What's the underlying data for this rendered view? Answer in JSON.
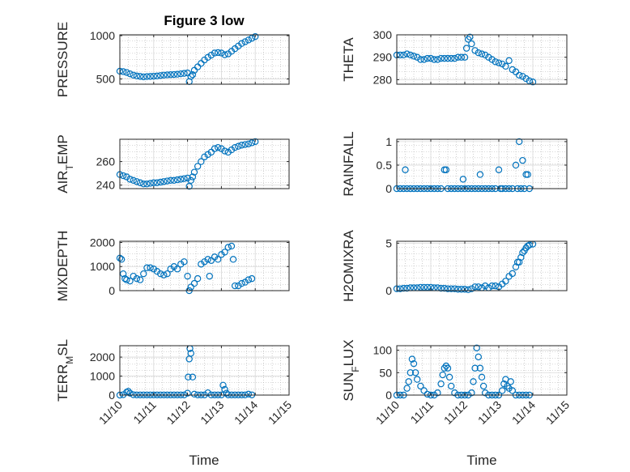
{
  "figure": {
    "title": "Figure 3 low",
    "x_tick_labels": [
      "11/10",
      "11/11",
      "11/12",
      "11/13",
      "11/14",
      "11/15"
    ],
    "xlabel_left": "Time",
    "xlabel_right": "Time"
  },
  "colors": {
    "marker": "#0072BD",
    "axis": "#262626",
    "grid": "#b0b0b0"
  },
  "chart_data": [
    {
      "type": "scatter",
      "ylabel": "PRESSURE",
      "ylim": [
        440,
        1010
      ],
      "yticks": [
        500,
        1000
      ],
      "x": [
        10.0,
        10.1,
        10.2,
        10.3,
        10.4,
        10.5,
        10.6,
        10.7,
        10.8,
        10.9,
        11.0,
        11.1,
        11.2,
        11.3,
        11.4,
        11.5,
        11.6,
        11.7,
        11.8,
        11.9,
        12.0,
        12.05,
        12.1,
        12.15,
        12.2,
        12.3,
        12.4,
        12.5,
        12.6,
        12.7,
        12.8,
        12.9,
        13.0,
        13.1,
        13.2,
        13.3,
        13.4,
        13.5,
        13.6,
        13.7,
        13.8,
        13.9,
        14.0
      ],
      "y": [
        590,
        585,
        575,
        560,
        545,
        535,
        530,
        525,
        528,
        530,
        532,
        535,
        540,
        545,
        548,
        550,
        552,
        555,
        560,
        565,
        570,
        470,
        530,
        550,
        600,
        640,
        680,
        720,
        750,
        775,
        800,
        805,
        800,
        780,
        790,
        820,
        850,
        880,
        910,
        930,
        950,
        970,
        990
      ]
    },
    {
      "type": "scatter",
      "ylabel": "THETA",
      "ylim": [
        278,
        300
      ],
      "yticks": [
        280,
        290,
        300
      ],
      "x": [
        10.0,
        10.1,
        10.2,
        10.3,
        10.4,
        10.5,
        10.6,
        10.7,
        10.8,
        10.9,
        11.0,
        11.1,
        11.2,
        11.3,
        11.4,
        11.5,
        11.6,
        11.7,
        11.8,
        11.9,
        12.0,
        12.05,
        12.1,
        12.15,
        12.2,
        12.3,
        12.4,
        12.5,
        12.6,
        12.7,
        12.8,
        12.9,
        13.0,
        13.1,
        13.2,
        13.3,
        13.4,
        13.5,
        13.6,
        13.7,
        13.8,
        13.9,
        14.0
      ],
      "y": [
        291,
        291,
        291,
        291.5,
        291,
        290.5,
        290,
        289,
        289,
        289.5,
        289.5,
        289,
        289,
        289.5,
        289.5,
        289.5,
        289.5,
        289.5,
        290,
        290,
        290,
        294,
        298,
        299,
        296,
        293,
        292,
        291.5,
        291,
        290,
        289,
        288,
        287.5,
        287,
        286,
        288.5,
        284.5,
        283.5,
        282,
        281.5,
        280.5,
        279.5,
        279
      ]
    },
    {
      "type": "scatter",
      "ylabel": "AIR_TEMP",
      "ylim": [
        237,
        279
      ],
      "yticks": [
        240,
        260
      ],
      "x": [
        10.0,
        10.1,
        10.2,
        10.3,
        10.4,
        10.5,
        10.6,
        10.7,
        10.8,
        10.9,
        11.0,
        11.1,
        11.2,
        11.3,
        11.4,
        11.5,
        11.6,
        11.7,
        11.8,
        11.9,
        12.0,
        12.05,
        12.1,
        12.15,
        12.2,
        12.3,
        12.4,
        12.5,
        12.6,
        12.7,
        12.8,
        12.9,
        13.0,
        13.1,
        13.2,
        13.3,
        13.4,
        13.5,
        13.6,
        13.7,
        13.8,
        13.9,
        14.0
      ],
      "y": [
        249,
        248,
        247,
        245,
        244,
        243,
        242,
        241,
        241,
        241.5,
        242,
        242,
        242.5,
        243,
        243.5,
        244,
        244,
        244.5,
        245,
        245.5,
        246,
        239,
        244,
        247,
        251,
        256,
        260,
        264,
        266,
        268,
        271,
        272,
        271,
        269,
        268,
        270,
        272,
        273,
        274,
        274.5,
        275,
        276,
        277
      ]
    },
    {
      "type": "scatter",
      "ylabel": "RAINFALL",
      "ylim": [
        0,
        1.05
      ],
      "yticks": [
        0,
        0.5,
        1
      ],
      "ytick_labels": [
        "0",
        "0.5",
        "1"
      ],
      "x": [
        10.0,
        10.1,
        10.2,
        10.25,
        10.3,
        10.4,
        10.5,
        10.6,
        10.7,
        10.8,
        10.9,
        11.0,
        11.1,
        11.2,
        11.3,
        11.4,
        11.45,
        11.5,
        11.6,
        11.7,
        11.8,
        11.9,
        11.95,
        12.0,
        12.1,
        12.2,
        12.3,
        12.4,
        12.45,
        12.5,
        12.6,
        12.7,
        12.8,
        12.9,
        13.0,
        13.05,
        13.1,
        13.2,
        13.3,
        13.4,
        13.5,
        13.55,
        13.6,
        13.65,
        13.7,
        13.75,
        13.8,
        13.85,
        13.9
      ],
      "y": [
        0,
        0,
        0,
        0.4,
        0,
        0,
        0,
        0,
        0,
        0,
        0,
        0,
        0,
        0,
        0,
        0.4,
        0.4,
        0,
        0,
        0,
        0,
        0,
        0.2,
        0,
        0,
        0,
        0,
        0,
        0.3,
        0,
        0,
        0,
        0,
        0,
        0.4,
        0,
        0,
        0,
        0,
        0,
        0.5,
        0,
        1.0,
        0,
        0.6,
        0,
        0.3,
        0.3,
        0
      ]
    },
    {
      "type": "scatter",
      "ylabel": "MIXDEPTH",
      "ylim": [
        0,
        2050
      ],
      "yticks": [
        0,
        1000,
        2000
      ],
      "x": [
        10.0,
        10.05,
        10.1,
        10.15,
        10.2,
        10.3,
        10.4,
        10.5,
        10.6,
        10.7,
        10.8,
        10.9,
        11.0,
        11.1,
        11.2,
        11.3,
        11.4,
        11.5,
        11.6,
        11.7,
        11.8,
        11.9,
        12.0,
        12.05,
        12.1,
        12.2,
        12.3,
        12.4,
        12.5,
        12.6,
        12.65,
        12.7,
        12.8,
        12.9,
        13.0,
        13.1,
        13.2,
        13.3,
        13.35,
        13.4,
        13.5,
        13.6,
        13.7,
        13.8,
        13.9
      ],
      "y": [
        1350,
        1300,
        700,
        500,
        450,
        400,
        600,
        500,
        450,
        700,
        950,
        950,
        900,
        800,
        700,
        650,
        700,
        900,
        1000,
        900,
        1100,
        1200,
        600,
        0,
        150,
        300,
        500,
        1100,
        1200,
        1300,
        600,
        1250,
        1400,
        1300,
        1500,
        1600,
        1800,
        1850,
        1300,
        200,
        200,
        300,
        350,
        450,
        500
      ]
    },
    {
      "type": "scatter",
      "ylabel": "H2OMIXRA",
      "ylim": [
        0,
        5.2
      ],
      "yticks": [
        0,
        5
      ],
      "x": [
        10.0,
        10.1,
        10.2,
        10.3,
        10.4,
        10.5,
        10.6,
        10.7,
        10.8,
        10.9,
        11.0,
        11.1,
        11.2,
        11.3,
        11.4,
        11.5,
        11.6,
        11.7,
        11.8,
        11.9,
        12.0,
        12.1,
        12.2,
        12.3,
        12.4,
        12.5,
        12.6,
        12.7,
        12.8,
        12.9,
        13.0,
        13.1,
        13.2,
        13.3,
        13.4,
        13.5,
        13.55,
        13.6,
        13.65,
        13.7,
        13.75,
        13.8,
        13.85,
        13.9,
        14.0
      ],
      "y": [
        0.2,
        0.2,
        0.25,
        0.25,
        0.3,
        0.3,
        0.3,
        0.35,
        0.35,
        0.35,
        0.35,
        0.3,
        0.3,
        0.25,
        0.25,
        0.2,
        0.2,
        0.2,
        0.15,
        0.15,
        0.15,
        0.1,
        0.2,
        0.4,
        0.4,
        0.3,
        0.5,
        0.3,
        0.5,
        0.5,
        0.4,
        0.7,
        1.0,
        1.5,
        1.8,
        2.5,
        3.0,
        3.0,
        3.5,
        4.0,
        4.2,
        4.5,
        4.7,
        4.8,
        4.9
      ]
    },
    {
      "type": "scatter",
      "ylabel": "TERR_MSL",
      "ylim": [
        0,
        2600
      ],
      "yticks": [
        0,
        1000,
        2000
      ],
      "x": [
        10.0,
        10.1,
        10.2,
        10.25,
        10.3,
        10.4,
        10.5,
        10.6,
        10.7,
        10.8,
        10.9,
        11.0,
        11.1,
        11.2,
        11.3,
        11.4,
        11.5,
        11.6,
        11.7,
        11.8,
        11.9,
        12.0,
        12.02,
        12.05,
        12.07,
        12.1,
        12.15,
        12.2,
        12.3,
        12.4,
        12.5,
        12.6,
        12.7,
        12.8,
        12.9,
        13.0,
        13.05,
        13.1,
        13.15,
        13.2,
        13.3,
        13.4,
        13.5,
        13.6,
        13.7,
        13.8,
        13.9
      ],
      "y": [
        0,
        20,
        150,
        200,
        100,
        20,
        10,
        10,
        10,
        10,
        10,
        10,
        10,
        10,
        10,
        10,
        10,
        10,
        10,
        10,
        10,
        100,
        950,
        1900,
        2450,
        2200,
        950,
        50,
        10,
        10,
        10,
        120,
        10,
        10,
        10,
        10,
        520,
        300,
        100,
        10,
        10,
        10,
        10,
        10,
        10,
        50,
        10
      ]
    },
    {
      "type": "scatter",
      "ylabel": "SUN_FLUX",
      "ylim": [
        0,
        110
      ],
      "yticks": [
        0,
        50,
        100
      ],
      "x": [
        10.0,
        10.1,
        10.2,
        10.3,
        10.35,
        10.4,
        10.45,
        10.5,
        10.55,
        10.6,
        10.7,
        10.8,
        10.9,
        11.0,
        11.1,
        11.2,
        11.3,
        11.35,
        11.4,
        11.45,
        11.5,
        11.55,
        11.6,
        11.7,
        11.8,
        11.9,
        12.0,
        12.1,
        12.2,
        12.25,
        12.3,
        12.35,
        12.4,
        12.45,
        12.5,
        12.55,
        12.6,
        12.7,
        12.8,
        12.9,
        13.0,
        13.1,
        13.15,
        13.2,
        13.25,
        13.3,
        13.35,
        13.4,
        13.5,
        13.6,
        13.7,
        13.8,
        13.9
      ],
      "y": [
        0,
        0,
        0,
        15,
        30,
        50,
        80,
        70,
        50,
        35,
        20,
        10,
        2,
        0,
        0,
        5,
        25,
        45,
        60,
        65,
        60,
        40,
        20,
        5,
        0,
        0,
        0,
        0,
        5,
        30,
        60,
        105,
        85,
        60,
        40,
        20,
        5,
        0,
        0,
        0,
        0,
        10,
        25,
        35,
        20,
        15,
        30,
        10,
        0,
        0,
        0,
        0,
        0
      ]
    }
  ]
}
